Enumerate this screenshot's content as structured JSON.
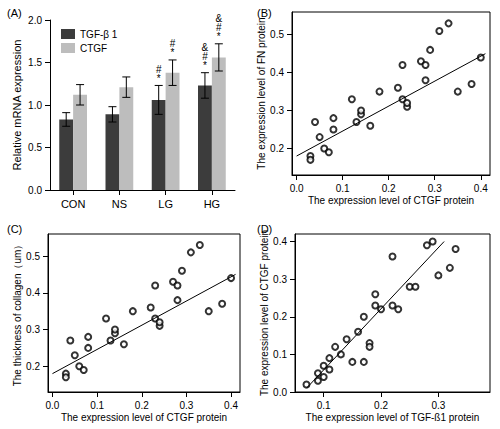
{
  "chart_data": [
    {
      "type": "bar",
      "panel": "(A)",
      "y_label": "Relative mRNA expression",
      "categories": [
        "CON",
        "NS",
        "LG",
        "HG"
      ],
      "series": [
        {
          "name": "TGF-β 1",
          "color": "#3c3c3c",
          "values": [
            0.83,
            0.89,
            1.06,
            1.23
          ],
          "errors": [
            0.08,
            0.09,
            0.17,
            0.15
          ],
          "marks": [
            null,
            null,
            [
              "#",
              "*"
            ],
            [
              "&",
              "#",
              "*"
            ]
          ]
        },
        {
          "name": "CTGF",
          "color": "#bdbdbd",
          "values": [
            1.12,
            1.21,
            1.38,
            1.56
          ],
          "errors": [
            0.12,
            0.12,
            0.15,
            0.16
          ],
          "marks": [
            null,
            null,
            [
              "#",
              "*"
            ],
            [
              "&",
              "#",
              "*"
            ]
          ]
        }
      ],
      "ylim": [
        0,
        2
      ],
      "yticks": [
        {
          "value": 0,
          "label": "0.0"
        },
        0.5,
        {
          "value": 1,
          "label": "1.0"
        },
        1.5,
        {
          "value": 2,
          "label": "2.0"
        }
      ],
      "legend": "upper left",
      "grid": false
    },
    {
      "type": "scatter",
      "panel": "(B)",
      "x_label": "The expression level of CTGF protein",
      "y_label": "The expression level of FN protein",
      "xlim": [
        -0.01,
        0.42
      ],
      "ylim": [
        0.13,
        0.56
      ],
      "xticks": [
        {
          "value": 0,
          "label": "0.0"
        },
        0.1,
        0.2,
        0.3,
        0.4
      ],
      "yticks": [
        0.2,
        0.3,
        0.4,
        0.5
      ],
      "x": [
        0.03,
        0.03,
        0.04,
        0.05,
        0.06,
        0.07,
        0.08,
        0.08,
        0.12,
        0.13,
        0.14,
        0.14,
        0.16,
        0.18,
        0.22,
        0.23,
        0.23,
        0.24,
        0.24,
        0.27,
        0.28,
        0.28,
        0.29,
        0.31,
        0.33,
        0.35,
        0.38,
        0.4
      ],
      "y": [
        0.18,
        0.17,
        0.27,
        0.23,
        0.2,
        0.19,
        0.25,
        0.28,
        0.33,
        0.27,
        0.29,
        0.3,
        0.26,
        0.35,
        0.36,
        0.42,
        0.33,
        0.31,
        0.32,
        0.43,
        0.42,
        0.38,
        0.46,
        0.51,
        0.53,
        0.35,
        0.37,
        0.44
      ],
      "fit_x": [
        0.0,
        0.41
      ],
      "fit_y": [
        0.18,
        0.45
      ],
      "color": "#000000",
      "marker": "open_circle",
      "grid": false
    },
    {
      "type": "scatter",
      "panel": "(C)",
      "x_label": "The expression level of CTGF protein",
      "y_label": "The thickness of collagen（um）",
      "xlim": [
        -0.01,
        0.42
      ],
      "ylim": [
        0.13,
        0.56
      ],
      "xticks": [
        {
          "value": 0,
          "label": "0.0"
        },
        0.1,
        0.2,
        0.3,
        0.4
      ],
      "yticks": [
        0.2,
        0.3,
        0.4,
        0.5
      ],
      "x": [
        0.03,
        0.03,
        0.04,
        0.05,
        0.06,
        0.07,
        0.08,
        0.08,
        0.12,
        0.13,
        0.14,
        0.14,
        0.16,
        0.18,
        0.22,
        0.23,
        0.23,
        0.24,
        0.24,
        0.27,
        0.28,
        0.28,
        0.29,
        0.31,
        0.33,
        0.35,
        0.38,
        0.4
      ],
      "y": [
        0.18,
        0.17,
        0.27,
        0.23,
        0.2,
        0.19,
        0.25,
        0.28,
        0.33,
        0.27,
        0.29,
        0.3,
        0.26,
        0.35,
        0.36,
        0.42,
        0.33,
        0.31,
        0.32,
        0.43,
        0.42,
        0.38,
        0.46,
        0.51,
        0.53,
        0.35,
        0.37,
        0.44
      ],
      "fit_x": [
        0.0,
        0.41
      ],
      "fit_y": [
        0.18,
        0.45
      ],
      "color": "#000000",
      "marker": "open_circle",
      "grid": false
    },
    {
      "type": "scatter",
      "panel": "(D)",
      "x_label": "The expression level of TGF-ß1 protein",
      "y_label": "The expression level of CTGF protein",
      "xlim": [
        0.05,
        0.39
      ],
      "ylim": [
        0,
        0.42
      ],
      "xticks": [
        0.1,
        0.2,
        0.3
      ],
      "yticks": [
        {
          "value": 0,
          "label": "0.0"
        },
        0.1,
        0.2,
        0.3,
        0.4
      ],
      "x": [
        0.07,
        0.09,
        0.09,
        0.1,
        0.1,
        0.11,
        0.11,
        0.12,
        0.13,
        0.14,
        0.15,
        0.16,
        0.17,
        0.17,
        0.18,
        0.18,
        0.19,
        0.19,
        0.2,
        0.22,
        0.22,
        0.23,
        0.25,
        0.26,
        0.28,
        0.29,
        0.3,
        0.32,
        0.33
      ],
      "y": [
        0.02,
        0.03,
        0.05,
        0.04,
        0.07,
        0.06,
        0.09,
        0.12,
        0.1,
        0.14,
        0.08,
        0.16,
        0.2,
        0.08,
        0.13,
        0.12,
        0.23,
        0.26,
        0.22,
        0.36,
        0.23,
        0.22,
        0.28,
        0.28,
        0.39,
        0.4,
        0.31,
        0.33,
        0.38
      ],
      "fit_x": [
        0.07,
        0.31
      ],
      "fit_y": [
        0.01,
        0.4
      ],
      "color": "#000000",
      "marker": "open_circle",
      "grid": false
    }
  ]
}
